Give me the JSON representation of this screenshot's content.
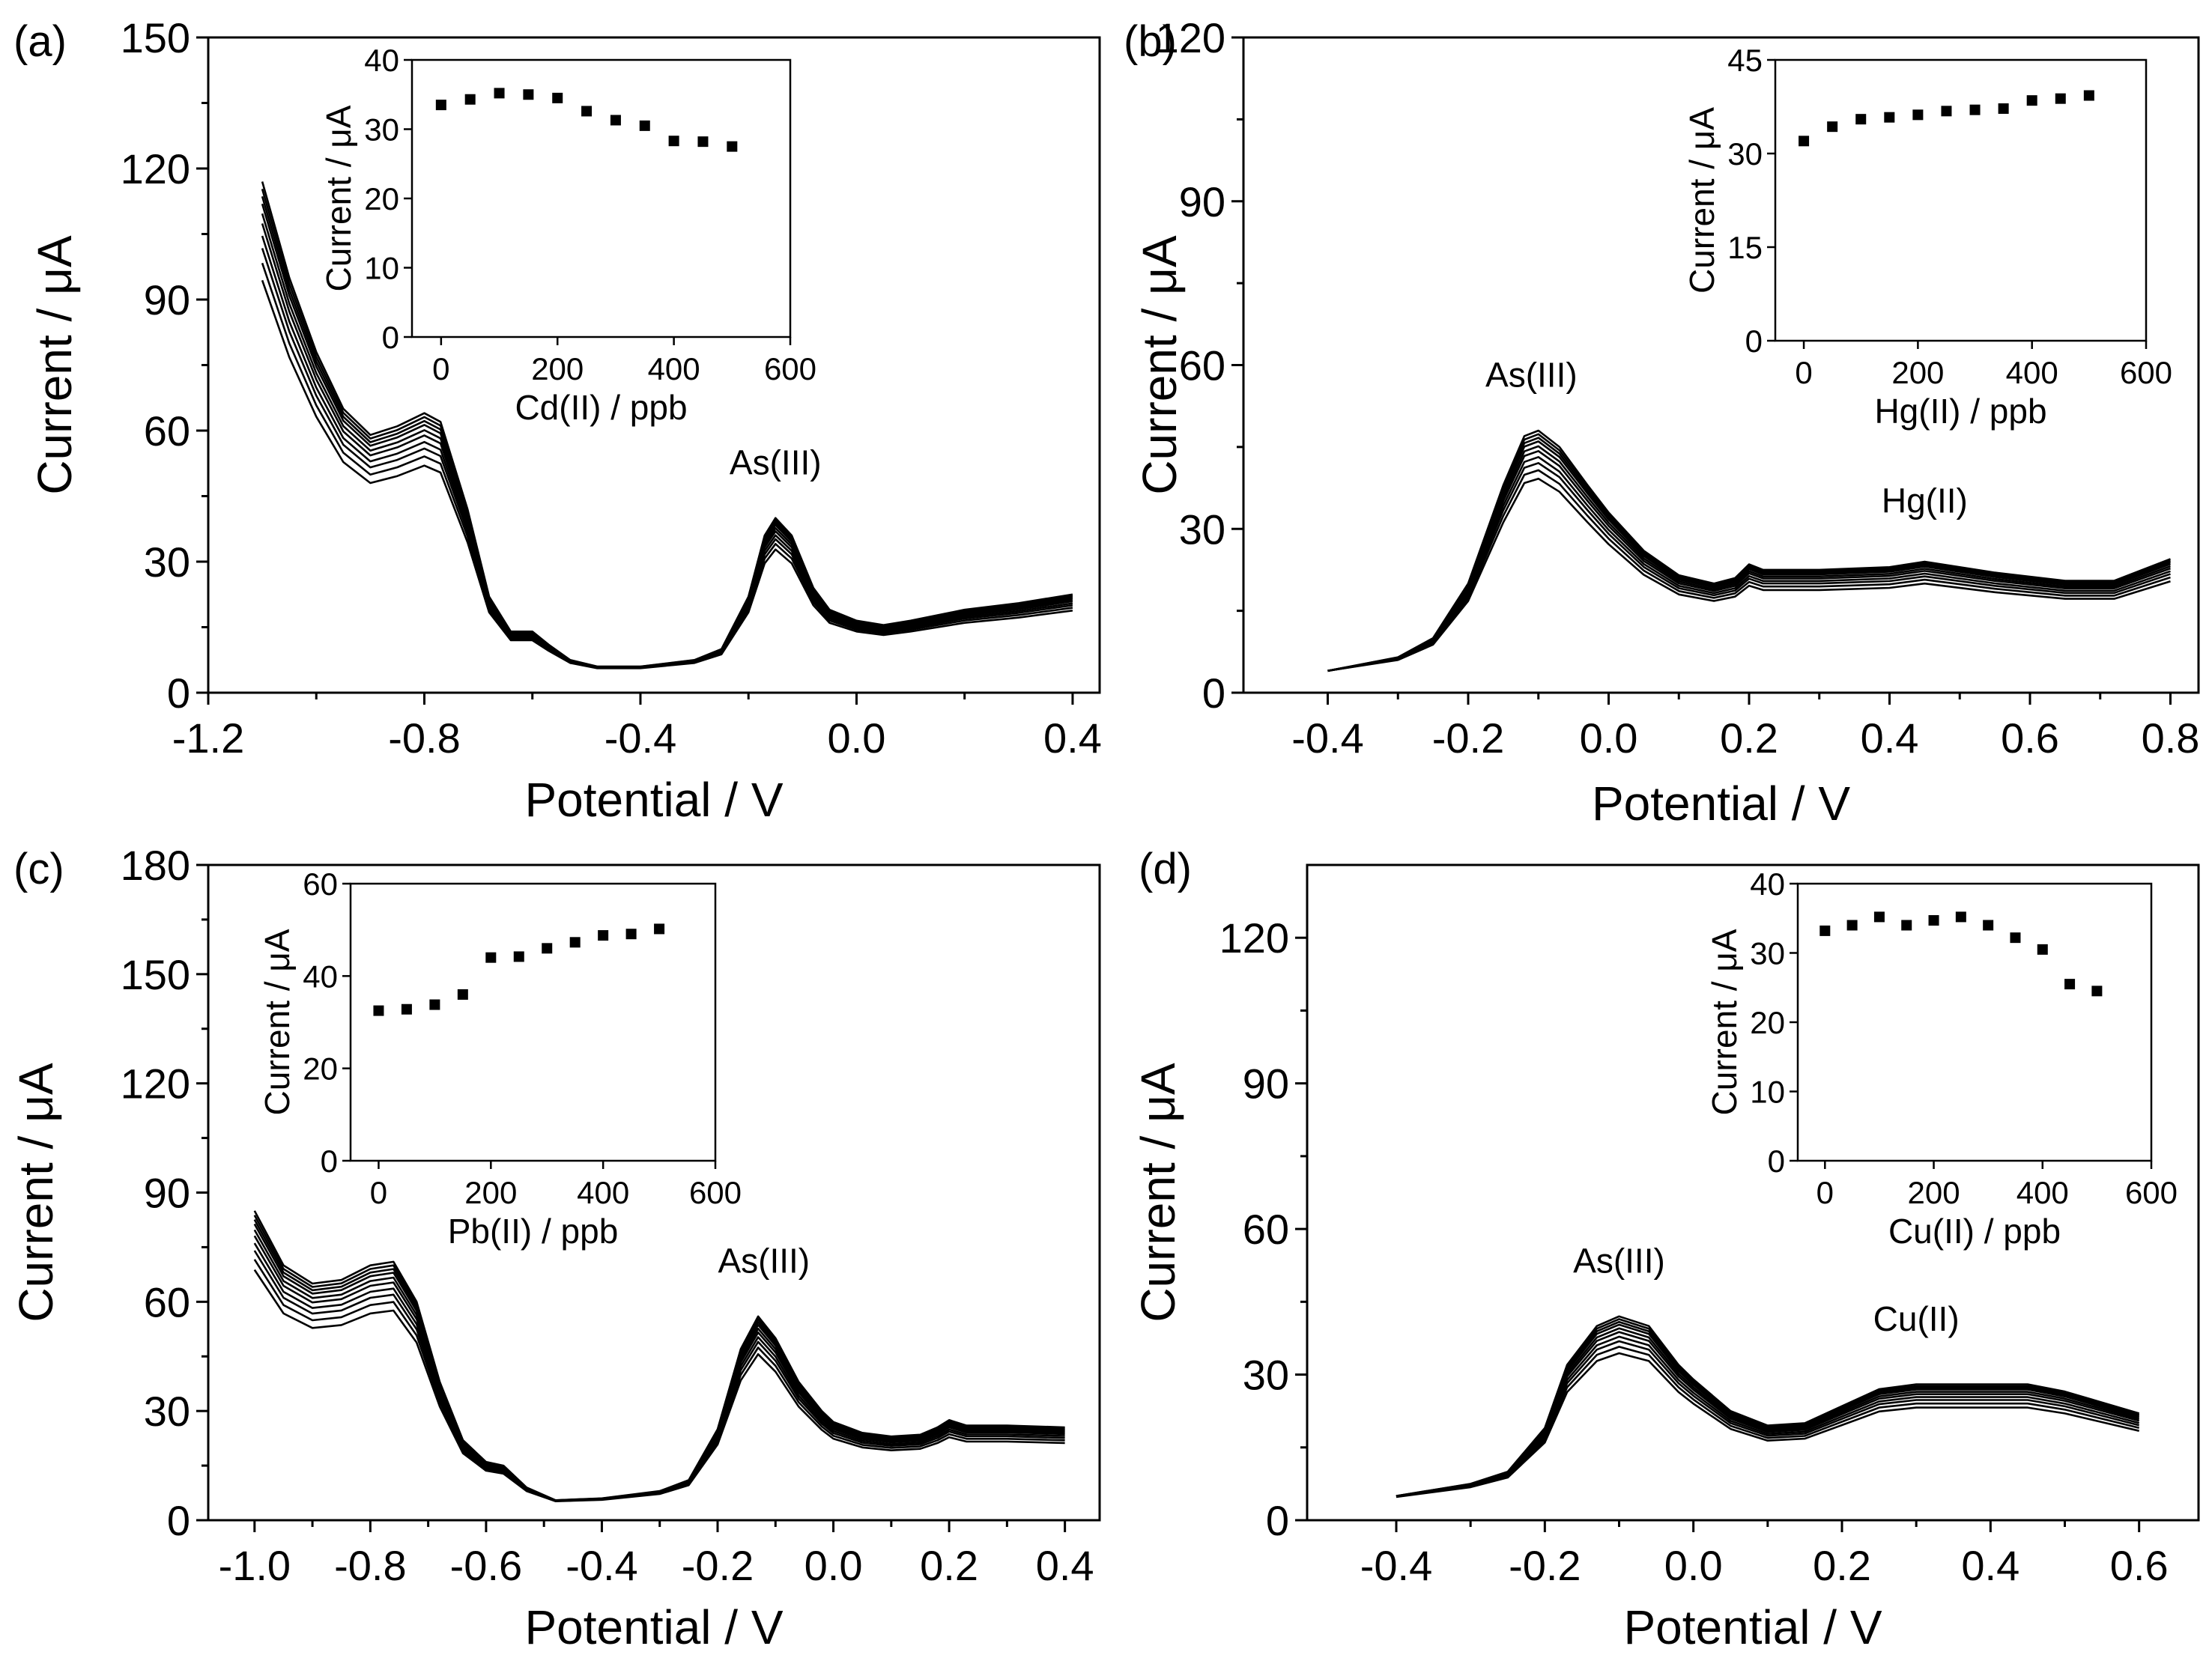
{
  "figure": {
    "panels": [
      {
        "label": "(a)",
        "interferent": "Cd(II)"
      },
      {
        "label": "(b)",
        "interferent": "Hg(II)"
      },
      {
        "label": "(c)",
        "interferent": "Pb(II)"
      },
      {
        "label": "(d)",
        "interferent": "Cu(II)"
      }
    ]
  },
  "chart_data": [
    {
      "panel": "(a)",
      "type": "line",
      "xlabel": "Potential / V",
      "ylabel": "Current / μA",
      "xlim": [
        -1.2,
        0.45
      ],
      "ylim": [
        0,
        150
      ],
      "xticks": [
        -1.2,
        -0.8,
        -0.4,
        0.0,
        0.4
      ],
      "xtick_labels": [
        "-1.2",
        "-0.8",
        "-0.4",
        "0.0",
        "0.4"
      ],
      "yticks": [
        0,
        30,
        60,
        90,
        120,
        150
      ],
      "ytick_labels": [
        "0",
        "30",
        "60",
        "90",
        "120",
        "150"
      ],
      "annotations": [
        {
          "text": "As(III)",
          "x": -0.15,
          "y": 50
        }
      ],
      "series_count": 10,
      "curve_profile": [
        [
          -1.1,
          117
        ],
        [
          -1.05,
          95
        ],
        [
          -1.0,
          78
        ],
        [
          -0.95,
          65
        ],
        [
          -0.9,
          59
        ],
        [
          -0.85,
          61
        ],
        [
          -0.8,
          64
        ],
        [
          -0.77,
          62
        ],
        [
          -0.72,
          42
        ],
        [
          -0.68,
          22
        ],
        [
          -0.64,
          14
        ],
        [
          -0.6,
          14
        ],
        [
          -0.57,
          11
        ],
        [
          -0.53,
          7.5
        ],
        [
          -0.48,
          6
        ],
        [
          -0.4,
          6
        ],
        [
          -0.3,
          7.5
        ],
        [
          -0.25,
          10
        ],
        [
          -0.2,
          22
        ],
        [
          -0.17,
          36
        ],
        [
          -0.15,
          40
        ],
        [
          -0.12,
          36
        ],
        [
          -0.08,
          24
        ],
        [
          -0.05,
          19
        ],
        [
          0.0,
          16.5
        ],
        [
          0.05,
          15.5
        ],
        [
          0.1,
          16.5
        ],
        [
          0.2,
          19
        ],
        [
          0.3,
          20.5
        ],
        [
          0.4,
          22.5
        ]
      ],
      "inset": {
        "type": "scatter",
        "xlabel": "Cd(II) / ppb",
        "ylabel": "Current / μA",
        "xlim": [
          -50,
          600
        ],
        "ylim": [
          0,
          40
        ],
        "xticks": [
          0,
          200,
          400,
          600
        ],
        "xtick_labels": [
          "0",
          "200",
          "400",
          "600"
        ],
        "yticks": [
          0,
          10,
          20,
          30,
          40
        ],
        "ytick_labels": [
          "0",
          "10",
          "20",
          "30",
          "40"
        ],
        "x": [
          0,
          50,
          100,
          150,
          200,
          250,
          300,
          350,
          400,
          450,
          500
        ],
        "y": [
          33.5,
          34.3,
          35.2,
          35,
          34.5,
          32.6,
          31.3,
          30.5,
          28.3,
          28.2,
          27.5
        ]
      }
    },
    {
      "panel": "(b)",
      "type": "line",
      "xlabel": "Potential / V",
      "ylabel": "Current / μA",
      "xlim": [
        -0.52,
        0.84
      ],
      "ylim": [
        0,
        120
      ],
      "xticks": [
        -0.4,
        -0.2,
        0.0,
        0.2,
        0.4,
        0.6,
        0.8
      ],
      "xtick_labels": [
        "-0.4",
        "-0.2",
        "0.0",
        "0.2",
        "0.4",
        "0.6",
        "0.8"
      ],
      "yticks": [
        0,
        30,
        60,
        90,
        120
      ],
      "ytick_labels": [
        "0",
        "30",
        "60",
        "90",
        "120"
      ],
      "annotations": [
        {
          "text": "As(III)",
          "x": -0.11,
          "y": 56
        },
        {
          "text": "Hg(II)",
          "x": 0.45,
          "y": 33
        }
      ],
      "series_count": 10,
      "curve_profile": [
        [
          -0.4,
          4
        ],
        [
          -0.3,
          6.5
        ],
        [
          -0.25,
          10
        ],
        [
          -0.2,
          20
        ],
        [
          -0.15,
          38
        ],
        [
          -0.12,
          47
        ],
        [
          -0.1,
          48
        ],
        [
          -0.07,
          45
        ],
        [
          -0.03,
          38
        ],
        [
          0.0,
          33
        ],
        [
          0.05,
          26
        ],
        [
          0.1,
          21.5
        ],
        [
          0.15,
          20
        ],
        [
          0.18,
          21
        ],
        [
          0.2,
          23.5
        ],
        [
          0.22,
          22.5
        ],
        [
          0.3,
          22.5
        ],
        [
          0.4,
          23
        ],
        [
          0.45,
          24
        ],
        [
          0.55,
          22
        ],
        [
          0.65,
          20.5
        ],
        [
          0.72,
          20.5
        ],
        [
          0.8,
          24.5
        ]
      ],
      "inset": {
        "type": "scatter",
        "xlabel": "Hg(II) / ppb",
        "ylabel": "Current / μA",
        "xlim": [
          -50,
          600
        ],
        "ylim": [
          0,
          45
        ],
        "xticks": [
          0,
          200,
          400,
          600
        ],
        "xtick_labels": [
          "0",
          "200",
          "400",
          "600"
        ],
        "yticks": [
          0,
          15,
          30,
          45
        ],
        "ytick_labels": [
          "0",
          "15",
          "30",
          "45"
        ],
        "x": [
          0,
          50,
          100,
          150,
          200,
          250,
          300,
          350,
          400,
          450,
          500
        ],
        "y": [
          32,
          34.3,
          35.5,
          35.8,
          36.2,
          36.8,
          37,
          37.2,
          38.5,
          38.8,
          39.3
        ]
      }
    },
    {
      "panel": "(c)",
      "type": "line",
      "xlabel": "Potential / V",
      "ylabel": "Current / μA",
      "xlim": [
        -1.08,
        0.46
      ],
      "ylim": [
        0,
        180
      ],
      "xticks": [
        -1.0,
        -0.8,
        -0.6,
        -0.4,
        -0.2,
        0.0,
        0.2,
        0.4
      ],
      "xtick_labels": [
        "-1.0",
        "-0.8",
        "-0.6",
        "-0.4",
        "-0.2",
        "0.0",
        "0.2",
        "0.4"
      ],
      "yticks": [
        0,
        30,
        60,
        90,
        120,
        150,
        180
      ],
      "ytick_labels": [
        "0",
        "30",
        "60",
        "90",
        "120",
        "150",
        "180"
      ],
      "annotations": [
        {
          "text": "As(III)",
          "x": -0.12,
          "y": 68
        }
      ],
      "series_count": 10,
      "curve_profile": [
        [
          -1.0,
          85
        ],
        [
          -0.95,
          70
        ],
        [
          -0.9,
          65
        ],
        [
          -0.85,
          66
        ],
        [
          -0.8,
          70
        ],
        [
          -0.76,
          71
        ],
        [
          -0.72,
          60
        ],
        [
          -0.68,
          38
        ],
        [
          -0.64,
          22
        ],
        [
          -0.6,
          16
        ],
        [
          -0.57,
          15
        ],
        [
          -0.53,
          9
        ],
        [
          -0.48,
          5.5
        ],
        [
          -0.4,
          6
        ],
        [
          -0.3,
          8
        ],
        [
          -0.25,
          11
        ],
        [
          -0.2,
          25
        ],
        [
          -0.16,
          47
        ],
        [
          -0.13,
          56
        ],
        [
          -0.1,
          50
        ],
        [
          -0.06,
          38
        ],
        [
          -0.02,
          30
        ],
        [
          0.0,
          27
        ],
        [
          0.05,
          24
        ],
        [
          0.1,
          23
        ],
        [
          0.15,
          23.5
        ],
        [
          0.18,
          25.5
        ],
        [
          0.2,
          27.5
        ],
        [
          0.23,
          26
        ],
        [
          0.3,
          26
        ],
        [
          0.4,
          25.5
        ]
      ],
      "inset": {
        "type": "scatter",
        "xlabel": "Pb(II) / ppb",
        "ylabel": "Current / μA",
        "xlim": [
          -50,
          600
        ],
        "ylim": [
          0,
          60
        ],
        "xticks": [
          0,
          200,
          400,
          600
        ],
        "xtick_labels": [
          "0",
          "200",
          "400",
          "600"
        ],
        "yticks": [
          0,
          20,
          40,
          60
        ],
        "ytick_labels": [
          "0",
          "20",
          "40",
          "60"
        ],
        "x": [
          0,
          50,
          100,
          150,
          200,
          250,
          300,
          350,
          400,
          450,
          500
        ],
        "y": [
          32.5,
          32.8,
          33.8,
          36,
          44,
          44.2,
          46,
          47.3,
          48.8,
          49.1,
          50.2
        ]
      }
    },
    {
      "panel": "(d)",
      "type": "line",
      "xlabel": "Potential / V",
      "ylabel": "Current / μA",
      "xlim": [
        -0.52,
        0.68
      ],
      "ylim": [
        0,
        135
      ],
      "xticks": [
        -0.4,
        -0.2,
        0.0,
        0.2,
        0.4,
        0.6
      ],
      "xtick_labels": [
        "-0.4",
        "-0.2",
        "0.0",
        "0.2",
        "0.4",
        "0.6"
      ],
      "yticks": [
        0,
        30,
        60,
        90,
        120
      ],
      "ytick_labels": [
        "0",
        "30",
        "60",
        "90",
        "120"
      ],
      "annotations": [
        {
          "text": "As(III)",
          "x": -0.1,
          "y": 51
        },
        {
          "text": "Cu(II)",
          "x": 0.3,
          "y": 39
        }
      ],
      "series_count": 10,
      "curve_profile": [
        [
          -0.4,
          5
        ],
        [
          -0.3,
          7.5
        ],
        [
          -0.25,
          10
        ],
        [
          -0.2,
          19
        ],
        [
          -0.17,
          32
        ],
        [
          -0.13,
          40
        ],
        [
          -0.1,
          42
        ],
        [
          -0.06,
          40
        ],
        [
          -0.02,
          32
        ],
        [
          0.0,
          29
        ],
        [
          0.05,
          22.5
        ],
        [
          0.1,
          19.5
        ],
        [
          0.15,
          20
        ],
        [
          0.2,
          23.5
        ],
        [
          0.25,
          27
        ],
        [
          0.3,
          28
        ],
        [
          0.4,
          28
        ],
        [
          0.45,
          28
        ],
        [
          0.5,
          26.5
        ],
        [
          0.6,
          22
        ]
      ],
      "inset": {
        "type": "scatter",
        "xlabel": "Cu(II) / ppb",
        "ylabel": "Current / μA",
        "xlim": [
          -50,
          600
        ],
        "ylim": [
          0,
          40
        ],
        "xticks": [
          0,
          200,
          400,
          600
        ],
        "xtick_labels": [
          "0",
          "200",
          "400",
          "600"
        ],
        "yticks": [
          0,
          10,
          20,
          30,
          40
        ],
        "ytick_labels": [
          "0",
          "10",
          "20",
          "30",
          "40"
        ],
        "x": [
          0,
          50,
          100,
          150,
          200,
          250,
          300,
          350,
          400,
          450,
          500
        ],
        "y": [
          33.2,
          34,
          35.2,
          34,
          34.7,
          35.2,
          34,
          32.2,
          30.5,
          25.5,
          24.5
        ]
      }
    }
  ]
}
